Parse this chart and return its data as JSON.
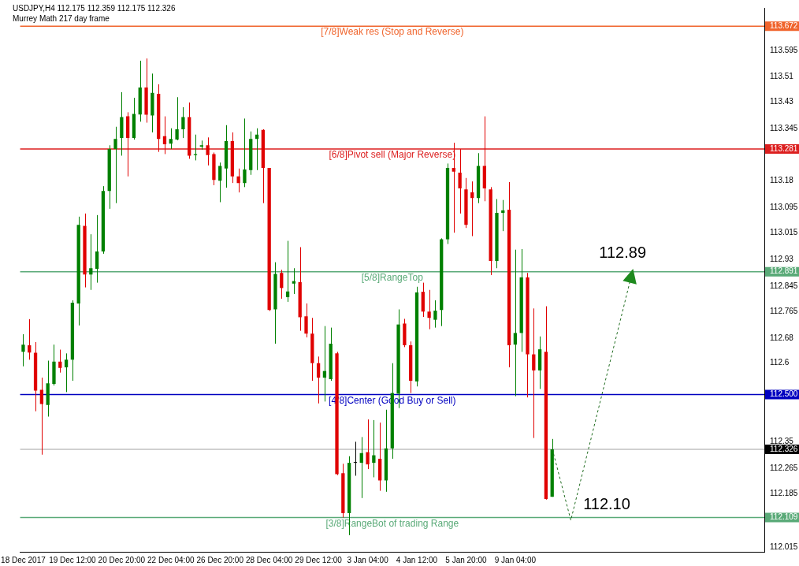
{
  "chart_data": {
    "type": "candlestick",
    "title": "USDJPY,H4 112.175 112.359 112.175 112.326",
    "subtitle": "Murrey Math 217 day frame",
    "categories": [
      "18 Dec 2017",
      null,
      null,
      null,
      null,
      null,
      null,
      null,
      "19 Dec 12:00",
      null,
      null,
      null,
      null,
      null,
      null,
      null,
      "20 Dec 20:00",
      null,
      null,
      null,
      null,
      null,
      null,
      null,
      "22 Dec 04:00",
      null,
      null,
      null,
      null,
      null,
      null,
      null,
      "26 Dec 20:00",
      null,
      null,
      null,
      null,
      null,
      null,
      null,
      "28 Dec 04:00",
      null,
      null,
      null,
      null,
      null,
      null,
      null,
      "29 Dec 12:00",
      null,
      null,
      null,
      null,
      null,
      null,
      null,
      "3 Jan 04:00",
      null,
      null,
      null,
      null,
      null,
      null,
      null,
      "4 Jan 12:00",
      null,
      null,
      null,
      null,
      null,
      null,
      null,
      "5 Jan 20:00",
      null,
      null,
      null,
      null,
      null,
      null,
      null,
      "9 Jan 04:00",
      null,
      null,
      null,
      null,
      null,
      null,
      null,
      null,
      null,
      null,
      null,
      null,
      null,
      null,
      null,
      null,
      null,
      null,
      null,
      null,
      null,
      null,
      null,
      null,
      null,
      null,
      null,
      null,
      null,
      null,
      null,
      null,
      null,
      null,
      null,
      null,
      null,
      null,
      null,
      null
    ],
    "series": [
      {
        "ohlc": [
          [
            112.636,
            112.692,
            112.59,
            112.659
          ],
          [
            112.657,
            112.74,
            112.611,
            112.634
          ],
          [
            112.633,
            112.667,
            112.447,
            112.513
          ],
          [
            112.515,
            112.554,
            112.309,
            112.47
          ],
          [
            112.467,
            112.608,
            112.43,
            112.536
          ],
          [
            112.534,
            112.659,
            112.529,
            112.605
          ],
          [
            112.605,
            112.643,
            112.57,
            112.585
          ],
          [
            112.587,
            112.631,
            112.508,
            112.611
          ],
          [
            112.611,
            112.8,
            112.544,
            112.792
          ],
          [
            112.79,
            113.066,
            112.72,
            113.04
          ],
          [
            113.037,
            113.076,
            112.841,
            112.882
          ],
          [
            112.882,
            113.01,
            112.833,
            112.902
          ],
          [
            112.9,
            113.071,
            112.856,
            112.955
          ],
          [
            112.955,
            113.163,
            112.948,
            113.148
          ],
          [
            113.148,
            113.293,
            113.091,
            113.281
          ],
          [
            113.281,
            113.352,
            113.109,
            113.313
          ],
          [
            113.316,
            113.462,
            113.26,
            113.383
          ],
          [
            113.385,
            113.398,
            113.194,
            113.316
          ],
          [
            113.316,
            113.444,
            113.311,
            113.393
          ],
          [
            113.391,
            113.562,
            113.368,
            113.477
          ],
          [
            113.477,
            113.569,
            113.365,
            113.39
          ],
          [
            113.388,
            113.521,
            113.334,
            113.46
          ],
          [
            113.457,
            113.487,
            113.272,
            113.313
          ],
          [
            113.322,
            113.385,
            113.265,
            113.296
          ],
          [
            113.298,
            113.347,
            113.281,
            113.313
          ],
          [
            113.311,
            113.446,
            113.309,
            113.344
          ],
          [
            113.344,
            113.414,
            113.316,
            113.383
          ],
          [
            113.383,
            113.429,
            113.25,
            113.26
          ],
          [
            113.262,
            113.327,
            113.245,
            113.265
          ],
          [
            113.289,
            113.308,
            113.279,
            113.293
          ],
          [
            113.293,
            113.318,
            113.229,
            113.262
          ],
          [
            113.265,
            113.27,
            113.166,
            113.183
          ],
          [
            113.18,
            113.238,
            113.112,
            113.227
          ],
          [
            113.219,
            113.357,
            113.158,
            113.306
          ],
          [
            113.306,
            113.334,
            113.173,
            113.194
          ],
          [
            113.194,
            113.219,
            113.143,
            113.173
          ],
          [
            113.173,
            113.378,
            113.16,
            113.216
          ],
          [
            113.214,
            113.337,
            113.199,
            113.313
          ],
          [
            113.313,
            113.347,
            113.214,
            113.327
          ],
          [
            113.342,
            113.344,
            113.109,
            113.221
          ],
          [
            113.221,
            113.221,
            112.766,
            112.769
          ],
          [
            112.771,
            112.921,
            112.662,
            112.884
          ],
          [
            112.887,
            112.897,
            112.805,
            112.839
          ],
          [
            112.81,
            112.989,
            112.795,
            112.828
          ],
          [
            112.853,
            112.902,
            112.82,
            112.861
          ],
          [
            112.858,
            112.969,
            112.703,
            112.746
          ],
          [
            112.749,
            112.79,
            112.682,
            112.694
          ],
          [
            112.694,
            112.744,
            112.544,
            112.6
          ],
          [
            112.6,
            112.621,
            112.472,
            112.554
          ],
          [
            112.554,
            112.718,
            112.478,
            112.575
          ],
          [
            112.549,
            112.713,
            112.544,
            112.662
          ],
          [
            112.631,
            112.636,
            112.244,
            112.247
          ],
          [
            112.25,
            112.28,
            112.109,
            112.123
          ],
          [
            112.123,
            112.304,
            112.053,
            112.283
          ],
          [
            112.283,
            112.35,
            112.242,
            112.283
          ],
          [
            112.283,
            112.365,
            112.171,
            112.314
          ],
          [
            112.317,
            112.421,
            112.263,
            112.278
          ],
          [
            112.283,
            112.419,
            112.237,
            112.307
          ],
          [
            112.296,
            112.411,
            112.194,
            112.227
          ],
          [
            112.227,
            112.452,
            112.191,
            112.329
          ],
          [
            112.329,
            112.6,
            112.296,
            112.505
          ],
          [
            112.503,
            112.771,
            112.457,
            112.723
          ],
          [
            112.726,
            112.741,
            112.651,
            112.657
          ],
          [
            112.657,
            112.669,
            112.505,
            112.544
          ],
          [
            112.542,
            112.843,
            112.526,
            112.825
          ],
          [
            112.827,
            112.856,
            112.747,
            112.764
          ],
          [
            112.764,
            112.833,
            112.708,
            112.744
          ],
          [
            112.738,
            112.8,
            112.713,
            112.767
          ],
          [
            112.769,
            112.997,
            112.718,
            112.994
          ],
          [
            112.994,
            113.235,
            112.979,
            113.221
          ],
          [
            113.221,
            113.301,
            113.015,
            113.209
          ],
          [
            113.206,
            113.281,
            113.076,
            113.156
          ],
          [
            113.153,
            113.189,
            113.03,
            113.04
          ],
          [
            113.143,
            113.178,
            113.004,
            113.125
          ],
          [
            113.125,
            113.268,
            113.109,
            113.227
          ],
          [
            113.227,
            113.385,
            113.115,
            113.156
          ],
          [
            113.153,
            113.16,
            112.88,
            112.925
          ],
          [
            112.925,
            113.122,
            112.902,
            113.078
          ],
          [
            113.078,
            113.119,
            113.02,
            113.086
          ],
          [
            113.088,
            113.176,
            112.587,
            112.657
          ],
          [
            112.659,
            112.961,
            112.495,
            112.696
          ],
          [
            112.696,
            112.963,
            112.636,
            112.873
          ],
          [
            112.873,
            112.887,
            112.491,
            112.628
          ],
          [
            112.628,
            112.774,
            112.362,
            112.577
          ],
          [
            112.577,
            112.685,
            112.518,
            112.644
          ],
          [
            112.636,
            112.781,
            112.166,
            112.168
          ],
          [
            112.175,
            112.359,
            112.175,
            112.326
          ],
          null,
          null,
          null,
          null,
          null,
          null,
          null,
          null,
          null,
          null,
          null,
          null,
          null,
          null,
          null,
          null,
          null,
          null,
          null,
          null,
          null,
          null,
          null,
          null,
          null,
          null,
          null,
          null,
          null,
          null,
          null,
          null,
          null,
          null
        ],
        "colors": [
          "#008000",
          "#e00000",
          "#e00000",
          "#e00000",
          "#008000",
          "#008000",
          "#e00000",
          "#008000",
          "#008000",
          "#008000",
          "#e00000",
          "#008000",
          "#008000",
          "#008000",
          "#008000",
          "#008000",
          "#008000",
          "#e00000",
          "#008000",
          "#008000",
          "#e00000",
          "#008000",
          "#e00000",
          "#e00000",
          "#008000",
          "#008000",
          "#008000",
          "#e00000",
          "#008000",
          "#008000",
          "#e00000",
          "#e00000",
          "#008000",
          "#008000",
          "#e00000",
          "#e00000",
          "#008000",
          "#008000",
          "#008000",
          "#e00000",
          "#e00000",
          "#008000",
          "#e00000",
          "#008000",
          "#008000",
          "#e00000",
          "#e00000",
          "#e00000",
          "#e00000",
          "#008000",
          "#008000",
          "#e00000",
          "#e00000",
          "#008000",
          "#000000",
          "#008000",
          "#e00000",
          "#008000",
          "#e00000",
          "#008000",
          "#008000",
          "#008000",
          "#e00000",
          "#e00000",
          "#008000",
          "#e00000",
          "#e00000",
          "#008000",
          "#008000",
          "#008000",
          "#e00000",
          "#e00000",
          "#e00000",
          "#e00000",
          "#008000",
          "#e00000",
          "#e00000",
          "#008000",
          "#008000",
          "#e00000",
          "#008000",
          "#008000",
          "#e00000",
          "#e00000",
          "#008000",
          "#e00000",
          "#008000",
          null,
          null,
          null,
          null,
          null,
          null,
          null,
          null,
          null,
          null,
          null,
          null,
          null,
          null,
          null,
          null,
          null,
          null,
          null,
          null,
          null,
          null,
          null,
          null,
          null,
          null,
          null,
          null,
          null,
          null,
          null,
          null,
          null,
          null
        ]
      }
    ],
    "annotations": [
      {
        "text": "112.10",
        "y": 112.1
      },
      {
        "text": "112.89",
        "y": 112.89
      }
    ],
    "ylim": [
      112.0,
      113.73
    ],
    "yticks": [
      112.015,
      112.109,
      112.185,
      112.265,
      112.326,
      112.35,
      {
        "value": 112.5,
        "label": "112.500"
      },
      112.6,
      112.68,
      112.765,
      112.845,
      112.891,
      112.93,
      113.015,
      113.095,
      113.18,
      113.281,
      113.345,
      113.43,
      113.51,
      113.595,
      113.672
    ],
    "ref_lines": [
      {
        "axis": "y",
        "value": 113.672,
        "label": "[7/8]Weak res (Stop and Reverse)",
        "color": "#f0642c"
      },
      {
        "axis": "y",
        "value": 113.281,
        "label": "[6/8]Pivot sell (Major Reverse)",
        "color": "#dc1e1e"
      },
      {
        "axis": "y",
        "value": 112.891,
        "label": "[5/8]RangeTop",
        "color": "#5aaa78"
      },
      {
        "axis": "y",
        "value": 112.5,
        "label": "[4/8]Center (Good Buy or Sell)",
        "color": "#0000c0"
      },
      {
        "axis": "y",
        "value": 112.109,
        "label": "[3/8]RangeBot of trading Range",
        "color": "#5aaa78"
      },
      {
        "axis": "y",
        "value": 112.326,
        "label": null,
        "color": "#c0c0c0"
      }
    ]
  }
}
